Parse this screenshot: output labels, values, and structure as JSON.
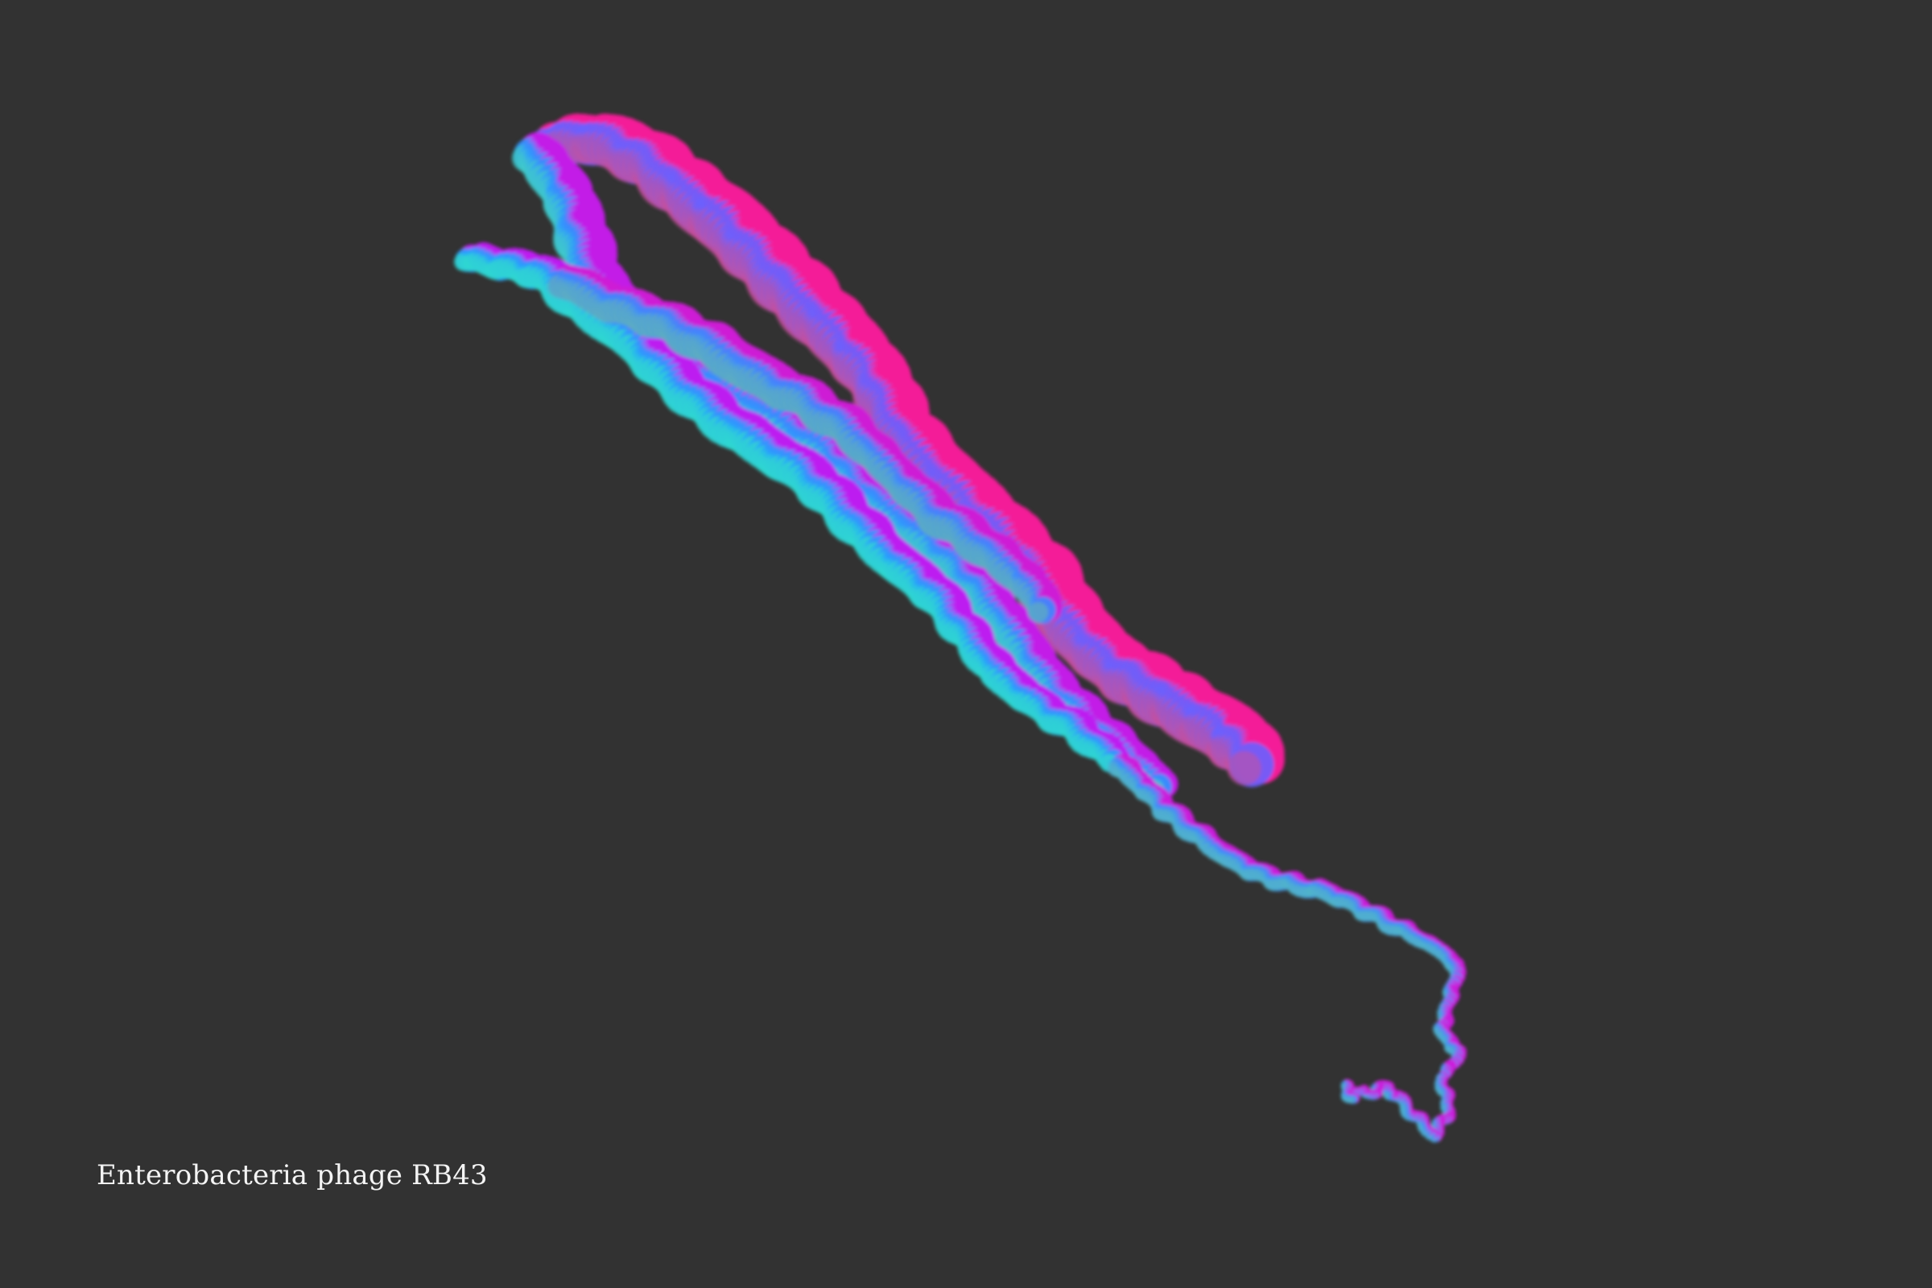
{
  "caption": "Enterobacteria phage RB43",
  "palette": {
    "background": "#323232",
    "cyan": "#16f0d8",
    "blue": "#1aa8ff",
    "violet": "#b41cff",
    "magenta": "#ff1f86"
  }
}
